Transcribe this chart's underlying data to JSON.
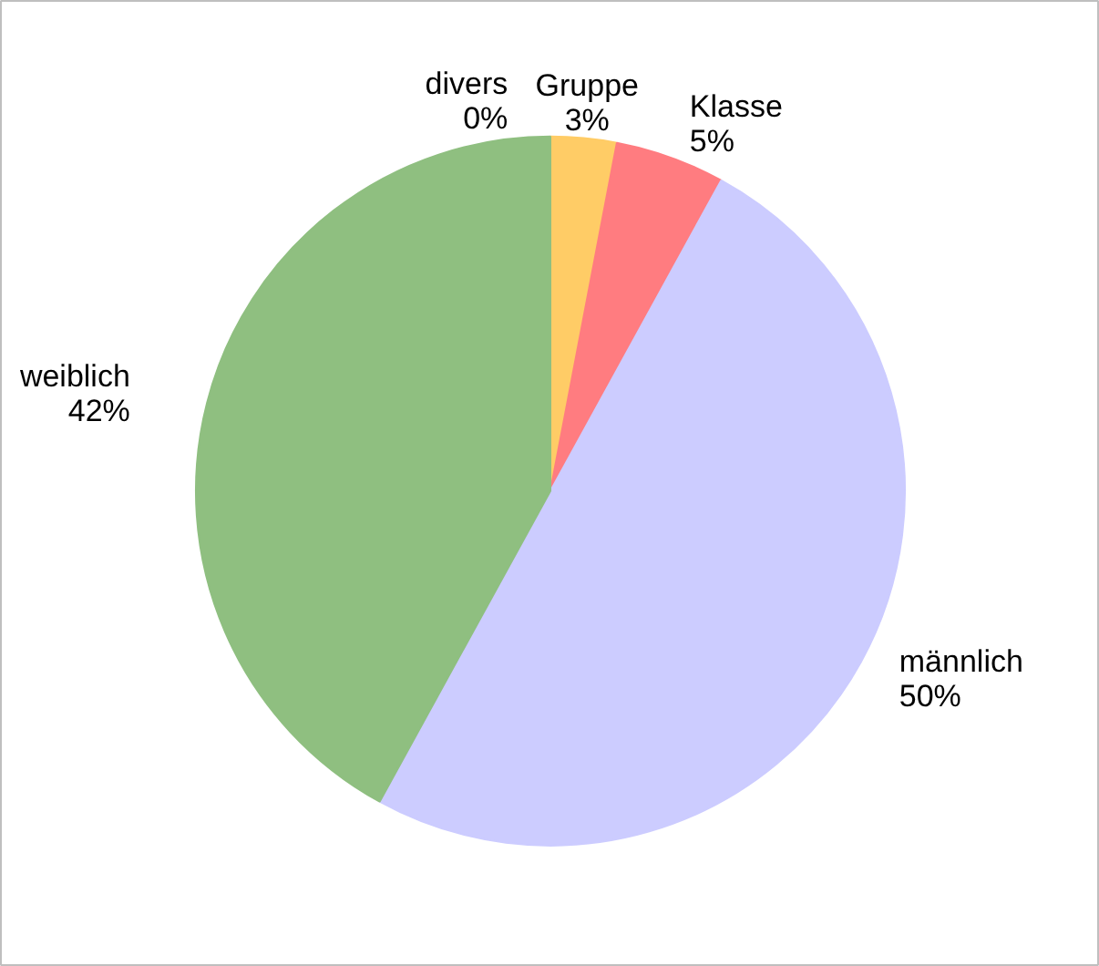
{
  "chart_data": {
    "type": "pie",
    "categories": [
      "divers",
      "Gruppe",
      "Klasse",
      "männlich",
      "weiblich"
    ],
    "values": [
      0,
      3,
      5,
      50,
      42
    ],
    "value_labels": [
      "0%",
      "3%",
      "5%",
      "50%",
      "42%"
    ],
    "colors": [
      "#99ccff",
      "#ffcc66",
      "#ff7c80",
      "#ccccff",
      "#8fbf80"
    ]
  }
}
